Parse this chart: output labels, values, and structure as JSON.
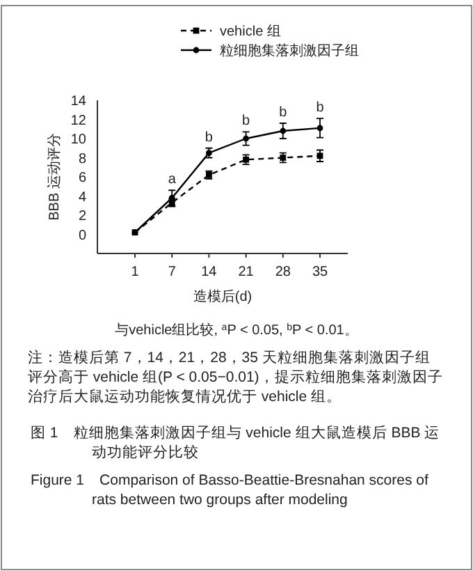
{
  "chart_data": {
    "type": "line",
    "title": "图 1　粒细胞集落刺激因子组与 vehicle 组大鼠造模后 BBB 运动功能评分比较",
    "subtitle": "Figure 1　Comparison of Basso-Beattie-Bresnahan scores of rats between two groups after modeling",
    "xlabel": "造模后(d)",
    "ylabel": "BBB 运动评分",
    "categories": [
      "1",
      "7",
      "14",
      "21",
      "28",
      "35"
    ],
    "series": [
      {
        "name": "vehicle 组",
        "color": "#000000",
        "line_style": "dashed",
        "marker": "square",
        "values": [
          0.2,
          3.3,
          6.2,
          7.8,
          8.0,
          8.2
        ],
        "errors": [
          null,
          0.4,
          0.4,
          0.5,
          0.5,
          0.6
        ]
      },
      {
        "name": "粒细胞集落刺激因子组",
        "color": "#000000",
        "line_style": "solid",
        "marker": "circle",
        "values": [
          0.2,
          3.8,
          8.5,
          10.0,
          10.8,
          11.1
        ],
        "errors": [
          null,
          0.8,
          0.5,
          0.7,
          0.8,
          1.0
        ]
      }
    ],
    "ylim": [
      -2,
      14
    ],
    "yticks": [
      0,
      2,
      4,
      6,
      8,
      10,
      12,
      14
    ],
    "grid": false,
    "legend": "top",
    "annotations": [
      {
        "text": "a",
        "x": "7",
        "y": 4.6
      },
      {
        "text": "b",
        "x": "14",
        "y": 9.0
      },
      {
        "text": "b",
        "x": "21",
        "y": 10.7
      },
      {
        "text": "b",
        "x": "28",
        "y": 11.6
      },
      {
        "text": "b",
        "x": "35",
        "y": 12.1
      },
      "与vehicle组比较, $^{a}$P < 0.05, $^{b}$P < 0.01。",
      "注：造模后第 7，14，21，28，35 天粒细胞集落刺激因子组评分高于 vehicle 组(P < 0.05−0.01)，提示粒细胞集落刺激因子治疗后大鼠运动功能恢复情况优于 vehicle 组。"
    ]
  }
}
